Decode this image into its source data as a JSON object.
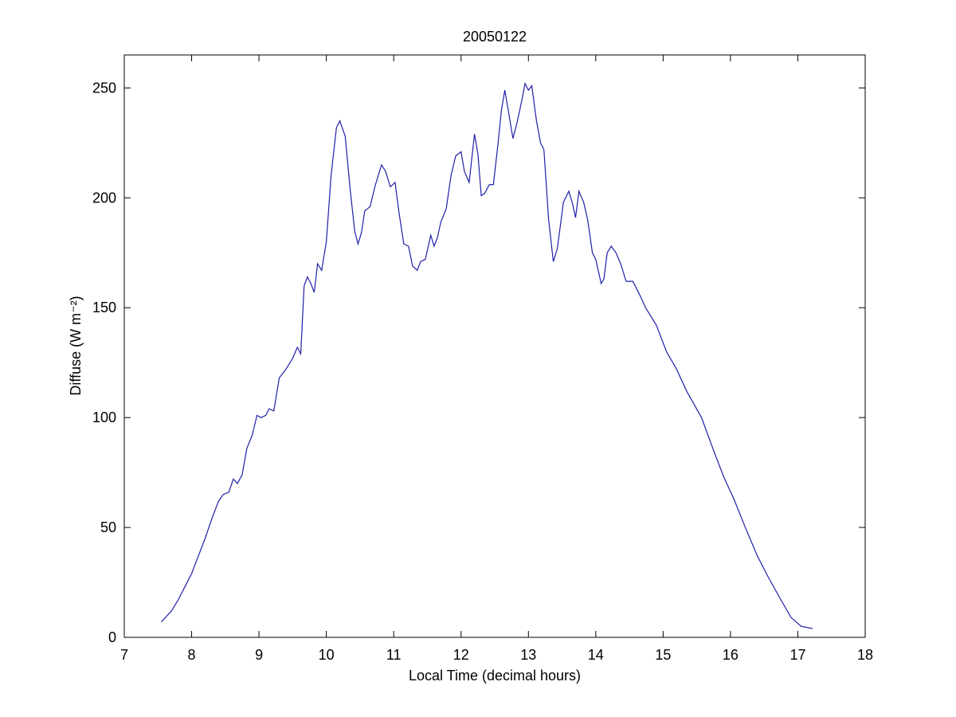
{
  "chart_data": {
    "type": "line",
    "title": "20050122",
    "xlabel": "Local Time (decimal hours)",
    "ylabel": "Diffuse (W m⁻²)",
    "xlim": [
      7,
      18
    ],
    "ylim": [
      0,
      265
    ],
    "xticks": [
      7,
      8,
      9,
      10,
      11,
      12,
      13,
      14,
      15,
      16,
      17,
      18
    ],
    "yticks": [
      0,
      50,
      100,
      150,
      200,
      250
    ],
    "grid": false,
    "series": [
      {
        "color": "#1f1fa8",
        "x": [
          7.55,
          7.7,
          7.8,
          7.9,
          8.0,
          8.1,
          8.2,
          8.3,
          8.4,
          8.47,
          8.55,
          8.62,
          8.68,
          8.75,
          8.82,
          8.9,
          8.97,
          9.03,
          9.1,
          9.15,
          9.22,
          9.3,
          9.4,
          9.5,
          9.57,
          9.62,
          9.67,
          9.72,
          9.77,
          9.82,
          9.87,
          9.93,
          10.0,
          10.07,
          10.15,
          10.2,
          10.28,
          10.35,
          10.42,
          10.47,
          10.52,
          10.57,
          10.65,
          10.72,
          10.82,
          10.88,
          10.95,
          11.02,
          11.08,
          11.15,
          11.22,
          11.28,
          11.35,
          11.4,
          11.47,
          11.55,
          11.6,
          11.65,
          11.7,
          11.78,
          11.85,
          11.92,
          12.0,
          12.05,
          12.12,
          12.2,
          12.25,
          12.3,
          12.35,
          12.42,
          12.48,
          12.55,
          12.6,
          12.65,
          12.7,
          12.77,
          12.83,
          12.9,
          12.95,
          13.0,
          13.05,
          13.12,
          13.18,
          13.23,
          13.3,
          13.37,
          13.43,
          13.52,
          13.6,
          13.65,
          13.7,
          13.75,
          13.82,
          13.88,
          13.95,
          14.0,
          14.08,
          14.12,
          14.17,
          14.23,
          14.3,
          14.37,
          14.45,
          14.55,
          14.65,
          14.74,
          14.9,
          15.05,
          15.2,
          15.35,
          15.57,
          15.75,
          15.9,
          16.05,
          16.22,
          16.4,
          16.55,
          16.75,
          16.9,
          17.05,
          17.22
        ],
        "values": [
          7,
          12,
          17,
          23,
          29,
          37,
          45,
          54,
          62,
          65,
          66,
          72,
          70,
          74,
          86,
          92,
          101,
          100,
          101,
          104,
          103,
          118,
          122,
          127,
          132,
          129,
          160,
          164,
          161,
          157,
          170,
          167,
          180,
          210,
          232,
          235,
          228,
          205,
          185,
          179,
          184,
          194,
          196,
          205,
          215,
          212,
          205,
          207,
          193,
          179,
          178,
          169,
          167,
          171,
          172,
          183,
          178,
          182,
          189,
          195,
          210,
          219,
          221,
          212,
          207,
          229,
          220,
          201,
          202,
          206,
          206,
          225,
          240,
          249,
          240,
          227,
          234,
          244,
          252,
          249,
          251,
          235,
          225,
          222,
          190,
          171,
          177,
          198,
          203,
          198,
          191,
          203,
          198,
          190,
          175,
          172,
          161,
          163,
          175,
          178,
          175,
          170,
          162,
          162,
          156,
          150,
          142,
          130,
          122,
          112,
          100,
          85,
          73,
          63,
          50,
          37,
          28,
          17,
          9,
          5,
          4
        ]
      }
    ]
  }
}
